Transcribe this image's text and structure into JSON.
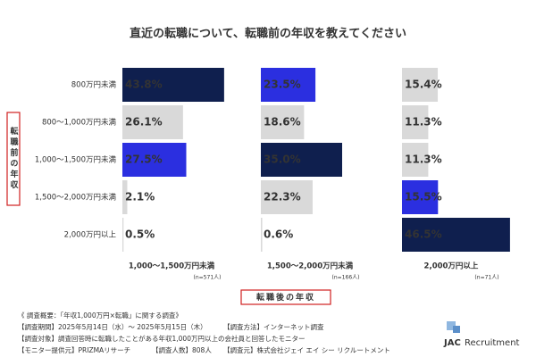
{
  "chart_data": {
    "type": "bar",
    "orientation": "horizontal",
    "title": "直近の転職について、転職前の年収を教えてください",
    "y_axis_label": "転職前の年収",
    "x_axis_label": "転職後の年収",
    "categories": [
      "800万円未満",
      "800～1,000万円未満",
      "1,000～1,500万円未満",
      "1,500～2,000万円未満",
      "2,000万円以上"
    ],
    "xlim": [
      0,
      50
    ],
    "series": [
      {
        "name": "1,000～1,500万円未満",
        "sample": "(n=571人)",
        "values": [
          43.8,
          26.1,
          27.5,
          2.1,
          0.5
        ],
        "value_labels": [
          "43.8%",
          "26.1%",
          "27.5%",
          "2.1%",
          "0.5%"
        ],
        "colors": [
          "#0f1f4e",
          "#d9d9d9",
          "#2b2fe0",
          "#d9d9d9",
          "#d9d9d9"
        ]
      },
      {
        "name": "1,500～2,000万円未満",
        "sample": "(n=166人)",
        "values": [
          23.5,
          18.6,
          35.0,
          22.3,
          0.6
        ],
        "value_labels": [
          "23.5%",
          "18.6%",
          "35.0%",
          "22.3%",
          "0.6%"
        ],
        "colors": [
          "#2b2fe0",
          "#d9d9d9",
          "#0f1f4e",
          "#d9d9d9",
          "#d9d9d9"
        ]
      },
      {
        "name": "2,000万円以上",
        "sample": "(n=71人)",
        "values": [
          15.4,
          11.3,
          11.3,
          15.5,
          46.5
        ],
        "value_labels": [
          "15.4%",
          "11.3%",
          "11.3%",
          "15.5%",
          "46.5%"
        ],
        "colors": [
          "#d9d9d9",
          "#d9d9d9",
          "#d9d9d9",
          "#2b2fe0",
          "#0f1f4e"
        ]
      }
    ]
  },
  "notes": [
    [
      "《 調査概要：「年収1,000万円×転職」に関する調査》"
    ],
    [
      "【調査期間】2025年5月14日（水）～ 2025年5月15日（木）",
      "【調査方法】インターネット調査"
    ],
    [
      "【調査対象】調査回答時に転職したことがある年収1,000万円以上の会社員と回答したモニター"
    ],
    [
      "【モニター提供元】PRIZMAリサーチ",
      "【調査人数】808人",
      "【調査元】株式会社ジェイ エイ シー リクルートメント"
    ]
  ],
  "logo": {
    "mark": "JAC",
    "text": "Recruitment"
  }
}
